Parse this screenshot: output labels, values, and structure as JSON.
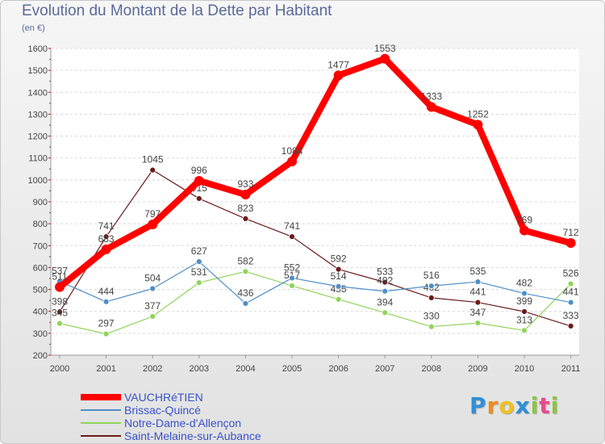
{
  "chart_data": {
    "type": "line",
    "title": "Evolution du Montant de la Dette par Habitant",
    "subtitle": "(en €)",
    "x": [
      "2000",
      "2001",
      "2002",
      "2003",
      "2004",
      "2005",
      "2006",
      "2007",
      "2008",
      "2009",
      "2010",
      "2011"
    ],
    "ylim": [
      200,
      1600
    ],
    "yticks": [
      "200",
      "300",
      "400",
      "500",
      "600",
      "700",
      "800",
      "900",
      "1000",
      "1100",
      "1200",
      "1300",
      "1400",
      "1500",
      "1600"
    ],
    "grid": "horizontal",
    "legend_position": "bottom-left",
    "series": [
      {
        "name": "VAUCHRéTIEN",
        "color": "#ff0000",
        "values": [
          511,
          683,
          797,
          996,
          933,
          1084,
          1477,
          1553,
          1333,
          1252,
          769,
          712
        ],
        "labels": [
          "511",
          "683",
          "797",
          "996",
          "933",
          "1084",
          "1477",
          "1553",
          "1333",
          "1252",
          "769",
          "712"
        ]
      },
      {
        "name": "Brissac-Quincé",
        "color": "#4f8fc9",
        "values": [
          537,
          444,
          504,
          627,
          436,
          552,
          514,
          492,
          516,
          535,
          482,
          441
        ],
        "labels": [
          "537",
          "444",
          "504",
          "627",
          "436",
          "552",
          "514",
          "492",
          "516",
          "535",
          "482",
          "441"
        ]
      },
      {
        "name": "Notre-Dame-d'Allençon",
        "color": "#8fd45a",
        "values": [
          345,
          297,
          377,
          531,
          582,
          517,
          455,
          394,
          330,
          347,
          313,
          526
        ],
        "labels": [
          "345",
          "297",
          "377",
          "531",
          "582",
          "517",
          "455",
          "394",
          "330",
          "347",
          "313",
          "526"
        ]
      },
      {
        "name": "Saint-Melaine-sur-Aubance",
        "color": "#6a1a1a",
        "values": [
          398,
          741,
          1045,
          915,
          823,
          741,
          592,
          533,
          462,
          441,
          399,
          333
        ],
        "labels": [
          "398",
          "741",
          "1045",
          "915",
          "823",
          "741",
          "592",
          "533",
          "462",
          "441",
          "399",
          "333"
        ]
      }
    ]
  },
  "logo": {
    "letters": [
      "P",
      "r",
      "o",
      "x",
      "i",
      "t",
      "i"
    ],
    "colors": [
      "#2e8fd8",
      "#f08a1c",
      "#f0c21c",
      "#2e8fd8",
      "#8cc63e",
      "#e84a8a",
      "#8cc63e"
    ]
  }
}
